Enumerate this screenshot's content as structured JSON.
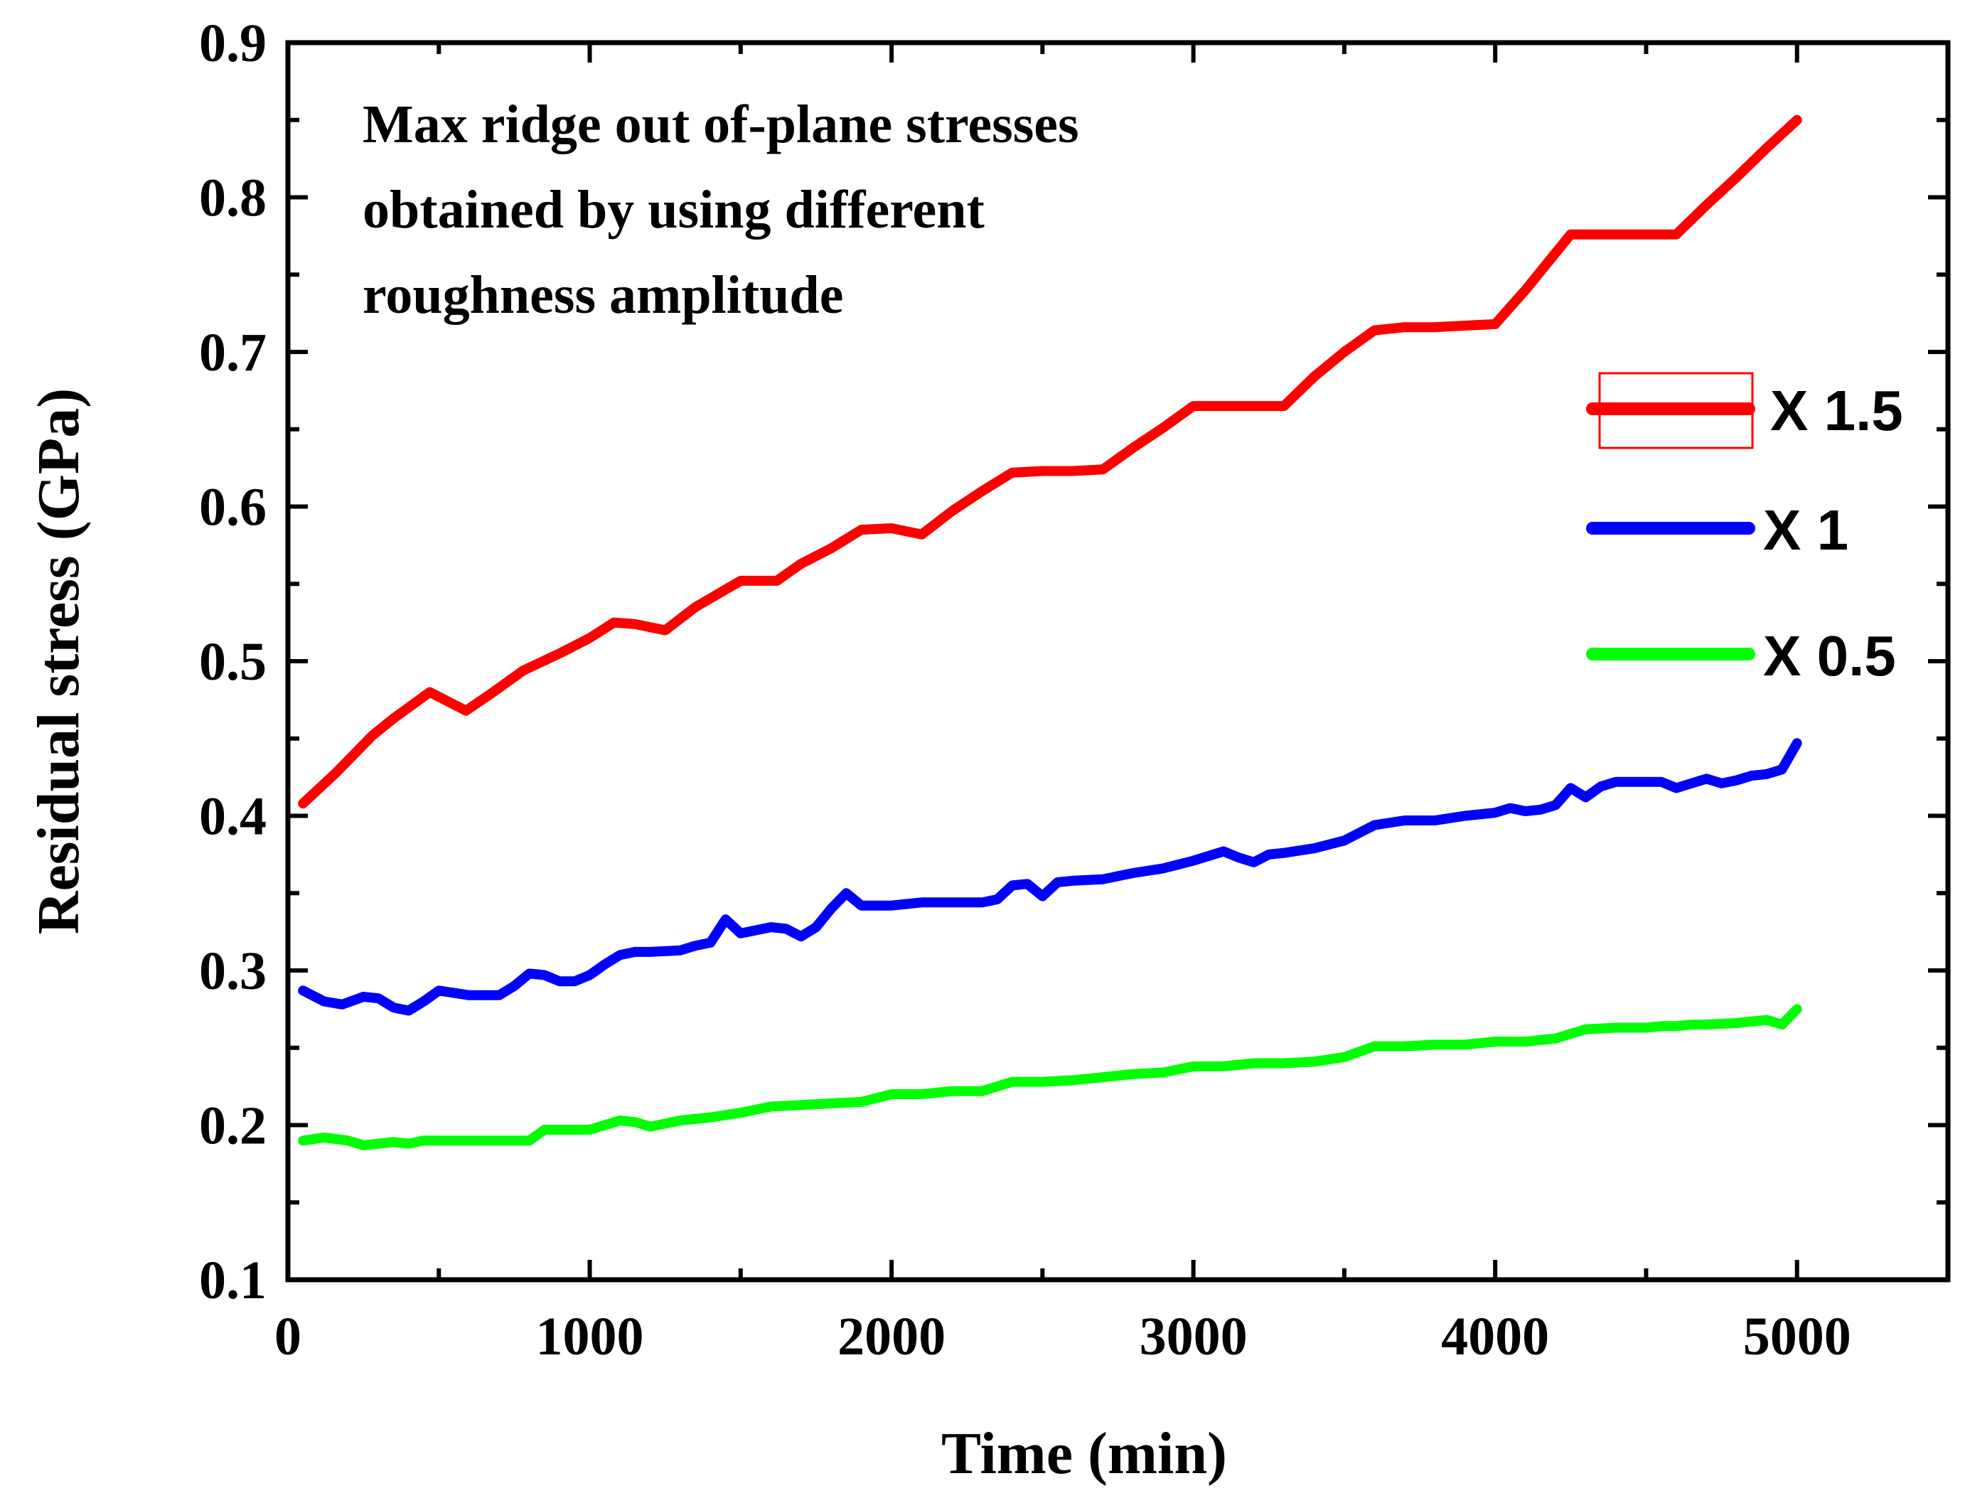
{
  "chart_data": {
    "type": "line",
    "title": "",
    "annotation": [
      "Max ridge out of-plane stresses",
      "obtained by using different",
      "roughness amplitude"
    ],
    "xlabel": "Time (min)",
    "ylabel": "Residual stress (GPa)",
    "xlim": [
      0,
      5500
    ],
    "ylim": [
      0.1,
      0.9
    ],
    "xticks": [
      0,
      1000,
      2000,
      3000,
      4000,
      5000
    ],
    "xtick_labels": [
      "0",
      "1000",
      "2000",
      "3000",
      "4000",
      "5000"
    ],
    "yticks": [
      0.1,
      0.2,
      0.3,
      0.4,
      0.5,
      0.6,
      0.7,
      0.8,
      0.9
    ],
    "ytick_labels": [
      "0.1",
      "0.2",
      "0.3",
      "0.4",
      "0.5",
      "0.6",
      "0.7",
      "0.8",
      "0.9"
    ],
    "grid": false,
    "legend_position": "right",
    "series": [
      {
        "name": "X 1.5",
        "color": "#ff0000",
        "x": [
          50,
          160,
          280,
          350,
          470,
          590,
          680,
          780,
          900,
          1000,
          1080,
          1150,
          1250,
          1350,
          1500,
          1620,
          1700,
          1800,
          1900,
          2000,
          2100,
          2200,
          2300,
          2400,
          2500,
          2600,
          2700,
          2800,
          2900,
          3000,
          3100,
          3200,
          3300,
          3400,
          3500,
          3600,
          3700,
          3800,
          3900,
          4000,
          4100,
          4250,
          4350,
          4450,
          4600,
          4700,
          4800,
          4900,
          5000
        ],
        "values": [
          0.408,
          0.428,
          0.452,
          0.463,
          0.48,
          0.468,
          0.48,
          0.494,
          0.505,
          0.515,
          0.525,
          0.524,
          0.52,
          0.535,
          0.552,
          0.552,
          0.563,
          0.573,
          0.585,
          0.586,
          0.582,
          0.597,
          0.61,
          0.622,
          0.623,
          0.623,
          0.624,
          0.638,
          0.651,
          0.665,
          0.665,
          0.665,
          0.665,
          0.684,
          0.7,
          0.714,
          0.716,
          0.716,
          0.717,
          0.718,
          0.74,
          0.776,
          0.776,
          0.776,
          0.776,
          0.795,
          0.813,
          0.832,
          0.85
        ]
      },
      {
        "name": "X 1",
        "color": "#0000ff",
        "x": [
          50,
          120,
          180,
          250,
          300,
          350,
          400,
          450,
          500,
          600,
          700,
          750,
          800,
          850,
          900,
          950,
          1000,
          1050,
          1100,
          1150,
          1200,
          1300,
          1350,
          1400,
          1450,
          1500,
          1550,
          1600,
          1650,
          1700,
          1750,
          1800,
          1850,
          1900,
          2000,
          2100,
          2200,
          2300,
          2350,
          2400,
          2450,
          2500,
          2550,
          2600,
          2700,
          2800,
          2900,
          3000,
          3100,
          3150,
          3200,
          3250,
          3300,
          3400,
          3500,
          3600,
          3700,
          3800,
          3900,
          4000,
          4050,
          4100,
          4150,
          4200,
          4250,
          4300,
          4350,
          4400,
          4500,
          4550,
          4600,
          4650,
          4700,
          4750,
          4800,
          4850,
          4900,
          4950,
          5000
        ],
        "values": [
          0.287,
          0.28,
          0.278,
          0.283,
          0.282,
          0.276,
          0.274,
          0.28,
          0.287,
          0.284,
          0.284,
          0.29,
          0.298,
          0.297,
          0.293,
          0.293,
          0.297,
          0.304,
          0.31,
          0.312,
          0.312,
          0.313,
          0.316,
          0.318,
          0.333,
          0.324,
          0.326,
          0.328,
          0.327,
          0.322,
          0.328,
          0.34,
          0.35,
          0.342,
          0.342,
          0.344,
          0.344,
          0.344,
          0.346,
          0.355,
          0.356,
          0.348,
          0.357,
          0.358,
          0.359,
          0.363,
          0.366,
          0.371,
          0.377,
          0.373,
          0.37,
          0.375,
          0.376,
          0.379,
          0.384,
          0.394,
          0.397,
          0.397,
          0.4,
          0.402,
          0.405,
          0.403,
          0.404,
          0.407,
          0.418,
          0.412,
          0.419,
          0.422,
          0.422,
          0.422,
          0.418,
          0.421,
          0.424,
          0.421,
          0.423,
          0.426,
          0.427,
          0.43,
          0.447
        ]
      },
      {
        "name": "X 0.5",
        "color": "#00ff00",
        "x": [
          50,
          120,
          200,
          250,
          300,
          350,
          400,
          450,
          500,
          600,
          700,
          800,
          850,
          900,
          1000,
          1050,
          1100,
          1150,
          1200,
          1300,
          1400,
          1500,
          1600,
          1700,
          1800,
          1900,
          2000,
          2100,
          2200,
          2300,
          2400,
          2500,
          2600,
          2700,
          2800,
          2900,
          3000,
          3100,
          3200,
          3300,
          3400,
          3500,
          3600,
          3700,
          3800,
          3900,
          4000,
          4100,
          4150,
          4200,
          4300,
          4400,
          4500,
          4550,
          4600,
          4650,
          4700,
          4800,
          4900,
          4950,
          5000
        ],
        "values": [
          0.19,
          0.192,
          0.19,
          0.187,
          0.188,
          0.189,
          0.188,
          0.19,
          0.19,
          0.19,
          0.19,
          0.19,
          0.197,
          0.197,
          0.197,
          0.2,
          0.203,
          0.202,
          0.199,
          0.203,
          0.205,
          0.208,
          0.212,
          0.213,
          0.214,
          0.215,
          0.22,
          0.22,
          0.222,
          0.222,
          0.228,
          0.228,
          0.229,
          0.231,
          0.233,
          0.234,
          0.238,
          0.238,
          0.24,
          0.24,
          0.241,
          0.244,
          0.251,
          0.251,
          0.252,
          0.252,
          0.254,
          0.254,
          0.255,
          0.256,
          0.262,
          0.263,
          0.263,
          0.264,
          0.264,
          0.265,
          0.265,
          0.266,
          0.268,
          0.265,
          0.275
        ]
      }
    ]
  }
}
